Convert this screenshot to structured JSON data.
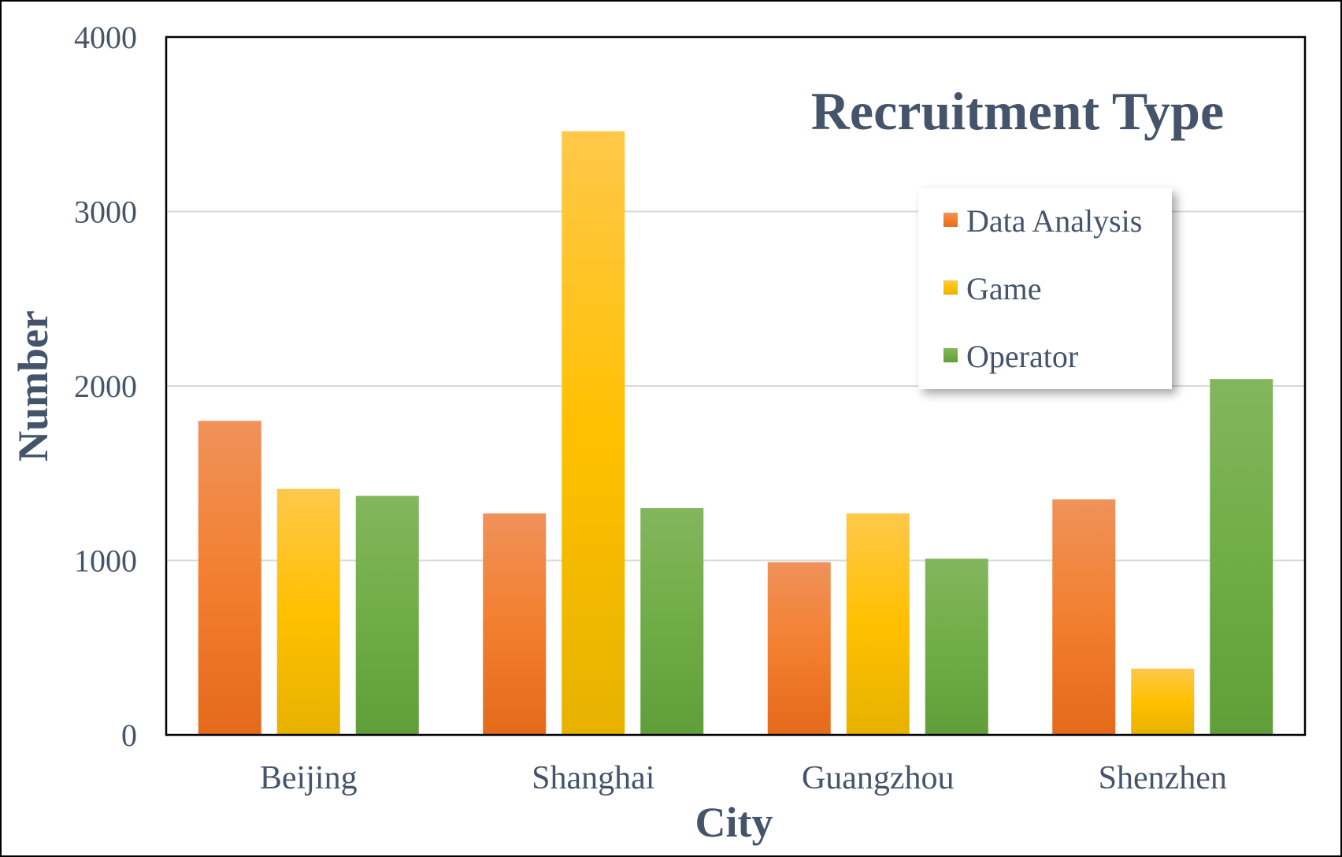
{
  "chart_data": {
    "type": "bar",
    "title": "Recruitment Type",
    "xlabel": "City",
    "ylabel": "Number",
    "categories": [
      "Beijing",
      "Shanghai",
      "Guangzhou",
      "Shenzhen"
    ],
    "series": [
      {
        "name": "Data Analysis",
        "values": [
          1800,
          1270,
          990,
          1350
        ],
        "color": "#ed7d31"
      },
      {
        "name": "Game",
        "values": [
          1410,
          3460,
          1270,
          380
        ],
        "color": "#ffc000"
      },
      {
        "name": "Operator",
        "values": [
          1370,
          1300,
          1010,
          2040
        ],
        "color": "#70ad47"
      }
    ],
    "ylim": [
      0,
      4000
    ],
    "yticks": [
      0,
      1000,
      2000,
      3000,
      4000
    ],
    "grid": true,
    "legend_position": "top-right"
  }
}
